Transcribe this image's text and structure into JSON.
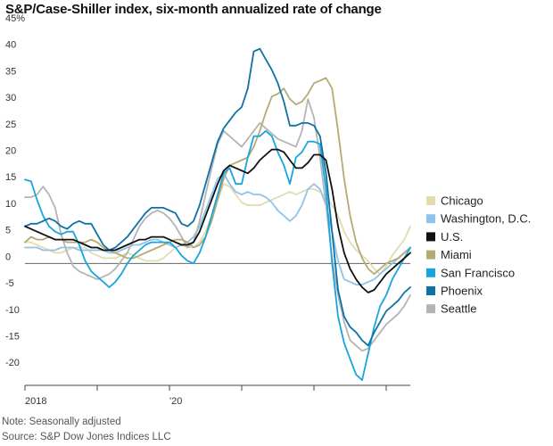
{
  "chart_data": {
    "type": "line",
    "title": "S&P/Case-Shiller index, six-month annualized rate of change",
    "note": "Note: Seasonally adjusted",
    "source": "Source: S&P Dow Jones Indices LLC",
    "ylim": [
      -23,
      46
    ],
    "yticks": [
      -20,
      -15,
      -10,
      -5,
      0,
      5,
      10,
      15,
      20,
      25,
      30,
      35,
      40,
      45
    ],
    "ytick_labels": [
      "-20",
      "-15",
      "-10",
      "-5",
      "0",
      "5",
      "10",
      "15",
      "20",
      "25",
      "30",
      "35",
      "40",
      "45%"
    ],
    "xlim": [
      "2018-01",
      "2023-05"
    ],
    "xticks": [
      "2018-01",
      "2019-01",
      "2020-01",
      "2021-01",
      "2022-01",
      "2023-01"
    ],
    "xtick_labels": [
      "2018",
      "",
      "'20",
      "",
      "",
      ""
    ],
    "grid": false,
    "legend_position": "right",
    "x": [
      "2018-01",
      "2018-02",
      "2018-03",
      "2018-04",
      "2018-05",
      "2018-06",
      "2018-07",
      "2018-08",
      "2018-09",
      "2018-10",
      "2018-11",
      "2018-12",
      "2019-01",
      "2019-02",
      "2019-03",
      "2019-04",
      "2019-05",
      "2019-06",
      "2019-07",
      "2019-08",
      "2019-09",
      "2019-10",
      "2019-11",
      "2019-12",
      "2020-01",
      "2020-02",
      "2020-03",
      "2020-04",
      "2020-05",
      "2020-06",
      "2020-07",
      "2020-08",
      "2020-09",
      "2020-10",
      "2020-11",
      "2020-12",
      "2021-01",
      "2021-02",
      "2021-03",
      "2021-04",
      "2021-05",
      "2021-06",
      "2021-07",
      "2021-08",
      "2021-09",
      "2021-10",
      "2021-11",
      "2021-12",
      "2022-01",
      "2022-02",
      "2022-03",
      "2022-04",
      "2022-05",
      "2022-06",
      "2022-07",
      "2022-08",
      "2022-09",
      "2022-10",
      "2022-11",
      "2022-12",
      "2023-01",
      "2023-02",
      "2023-03",
      "2023-04",
      "2023-05"
    ],
    "series": [
      {
        "name": "Chicago",
        "color": "#e3dcae",
        "values": [
          4.0,
          4.0,
          3.5,
          3.0,
          2.5,
          2.0,
          2.0,
          2.5,
          3.0,
          3.0,
          3.0,
          2.0,
          1.5,
          1.0,
          1.0,
          1.0,
          1.5,
          2.0,
          1.5,
          1.0,
          0.5,
          0.5,
          0.5,
          1.0,
          2.0,
          3.0,
          3.5,
          3.0,
          3.0,
          4.0,
          6.0,
          9.0,
          12.0,
          15.0,
          14.5,
          13.0,
          11.5,
          11.0,
          11.0,
          11.0,
          11.5,
          12.0,
          12.5,
          13.0,
          13.5,
          13.0,
          13.5,
          14.0,
          14.0,
          13.5,
          12.5,
          11.0,
          9.0,
          6.0,
          4.0,
          2.5,
          1.5,
          0.5,
          -1.0,
          -2.0,
          -0.5,
          1.5,
          3.0,
          4.5,
          7.0
        ]
      },
      {
        "name": "Washington, D.C.",
        "color": "#8ec4ea",
        "values": [
          3.0,
          3.0,
          3.0,
          2.5,
          2.5,
          2.5,
          3.0,
          3.0,
          3.0,
          2.5,
          2.5,
          2.5,
          2.5,
          2.5,
          2.0,
          2.0,
          2.5,
          3.0,
          3.5,
          3.5,
          4.0,
          4.5,
          4.5,
          4.0,
          3.5,
          3.0,
          3.5,
          4.0,
          5.0,
          7.0,
          10.0,
          13.0,
          16.0,
          17.0,
          15.0,
          13.5,
          13.0,
          13.5,
          13.0,
          13.0,
          12.5,
          11.5,
          10.0,
          9.0,
          8.0,
          9.0,
          11.0,
          14.0,
          15.0,
          14.0,
          11.0,
          6.0,
          0.5,
          -3.0,
          -3.5,
          -4.0,
          -4.0,
          -3.5,
          -3.0,
          -2.0,
          -1.0,
          0.0,
          1.0,
          2.0,
          3.0
        ]
      },
      {
        "name": "U.S.",
        "color": "#111111",
        "values": [
          7.0,
          6.5,
          6.0,
          5.5,
          5.0,
          4.5,
          4.5,
          4.5,
          4.5,
          4.0,
          3.5,
          3.0,
          3.0,
          2.5,
          2.5,
          2.5,
          3.0,
          3.5,
          4.0,
          4.5,
          4.5,
          5.0,
          5.0,
          5.0,
          4.5,
          4.0,
          3.5,
          3.5,
          4.0,
          6.0,
          9.0,
          12.0,
          15.0,
          17.5,
          18.5,
          18.0,
          17.5,
          17.0,
          18.0,
          19.5,
          20.5,
          21.5,
          21.5,
          21.0,
          19.5,
          18.0,
          18.0,
          19.0,
          20.5,
          20.5,
          19.5,
          14.0,
          7.0,
          2.0,
          -1.0,
          -3.0,
          -4.5,
          -5.5,
          -5.0,
          -3.5,
          -2.0,
          -1.0,
          0.0,
          1.0,
          2.0
        ]
      },
      {
        "name": "Miami",
        "color": "#b5aa74",
        "values": [
          4.0,
          5.0,
          4.5,
          4.5,
          5.0,
          4.5,
          4.5,
          4.0,
          4.0,
          4.0,
          4.0,
          4.5,
          4.0,
          3.0,
          2.5,
          2.0,
          1.5,
          1.0,
          1.0,
          1.5,
          2.0,
          2.5,
          3.0,
          3.5,
          4.0,
          4.5,
          4.5,
          4.0,
          3.0,
          3.5,
          5.0,
          8.0,
          12.0,
          16.0,
          18.5,
          19.0,
          19.5,
          20.0,
          22.0,
          25.0,
          28.5,
          31.5,
          32.0,
          33.0,
          31.0,
          30.0,
          30.5,
          32.0,
          34.0,
          34.5,
          35.0,
          33.0,
          25.0,
          16.0,
          9.0,
          4.0,
          1.0,
          -1.0,
          -2.0,
          -1.0,
          0.0,
          0.5,
          1.0,
          2.0,
          3.0
        ]
      },
      {
        "name": "San Francisco",
        "color": "#18a5de",
        "values": [
          15.8,
          15.5,
          12.0,
          9.0,
          7.0,
          6.0,
          5.5,
          6.0,
          6.0,
          3.5,
          0.5,
          -1.5,
          -2.5,
          -3.5,
          -4.5,
          -3.5,
          -2.0,
          0.0,
          1.5,
          2.5,
          3.5,
          4.0,
          4.0,
          4.0,
          4.0,
          3.0,
          1.5,
          0.5,
          0.0,
          2.0,
          5.0,
          9.0,
          13.0,
          17.0,
          18.0,
          15.0,
          15.0,
          20.0,
          24.0,
          24.0,
          25.0,
          24.0,
          21.0,
          18.5,
          15.0,
          20.0,
          21.0,
          23.0,
          23.0,
          22.5,
          14.0,
          0.0,
          -10.0,
          -15.0,
          -18.0,
          -21.0,
          -22.0,
          -17.0,
          -12.0,
          -8.0,
          -6.0,
          -3.0,
          -1.0,
          1.0,
          3.0
        ]
      },
      {
        "name": "Phoenix",
        "color": "#0f72a3",
        "values": [
          7.0,
          7.5,
          7.5,
          8.0,
          8.5,
          8.0,
          7.0,
          6.5,
          7.5,
          8.0,
          7.5,
          7.5,
          5.5,
          3.5,
          2.5,
          3.0,
          4.0,
          5.0,
          6.5,
          8.0,
          9.5,
          10.5,
          10.5,
          10.5,
          10.0,
          9.5,
          7.5,
          7.0,
          8.0,
          11.0,
          15.0,
          19.0,
          23.0,
          25.5,
          27.0,
          28.5,
          29.5,
          33.0,
          40.0,
          40.5,
          38.5,
          36.5,
          34.0,
          30.5,
          26.0,
          26.0,
          26.5,
          26.5,
          26.0,
          24.0,
          17.0,
          6.0,
          -5.0,
          -10.0,
          -12.0,
          -13.0,
          -14.5,
          -15.5,
          -13.0,
          -11.0,
          -9.0,
          -8.0,
          -7.0,
          -5.5,
          -4.5
        ]
      },
      {
        "name": "Seattle",
        "color": "#b4b4b4",
        "values": [
          12.5,
          12.5,
          13.0,
          14.5,
          13.0,
          10.5,
          5.5,
          2.0,
          -0.5,
          -1.5,
          -2.0,
          -2.5,
          -3.0,
          -2.5,
          -2.0,
          -1.0,
          0.5,
          2.0,
          4.5,
          7.0,
          8.5,
          9.5,
          10.0,
          9.5,
          8.5,
          7.0,
          5.0,
          3.0,
          4.0,
          8.0,
          13.0,
          18.0,
          22.5,
          25.0,
          24.0,
          23.0,
          22.0,
          23.5,
          25.0,
          26.5,
          25.5,
          24.5,
          23.5,
          23.0,
          22.5,
          22.0,
          25.0,
          31.0,
          27.5,
          20.0,
          11.0,
          1.0,
          -6.0,
          -11.0,
          -14.5,
          -15.5,
          -16.5,
          -16.0,
          -14.5,
          -13.0,
          -11.5,
          -10.5,
          -9.5,
          -8.0,
          -6.0
        ]
      }
    ],
    "legend_order": [
      "Chicago",
      "Washington, D.C.",
      "U.S.",
      "Miami",
      "San Francisco",
      "Phoenix",
      "Seattle"
    ]
  }
}
